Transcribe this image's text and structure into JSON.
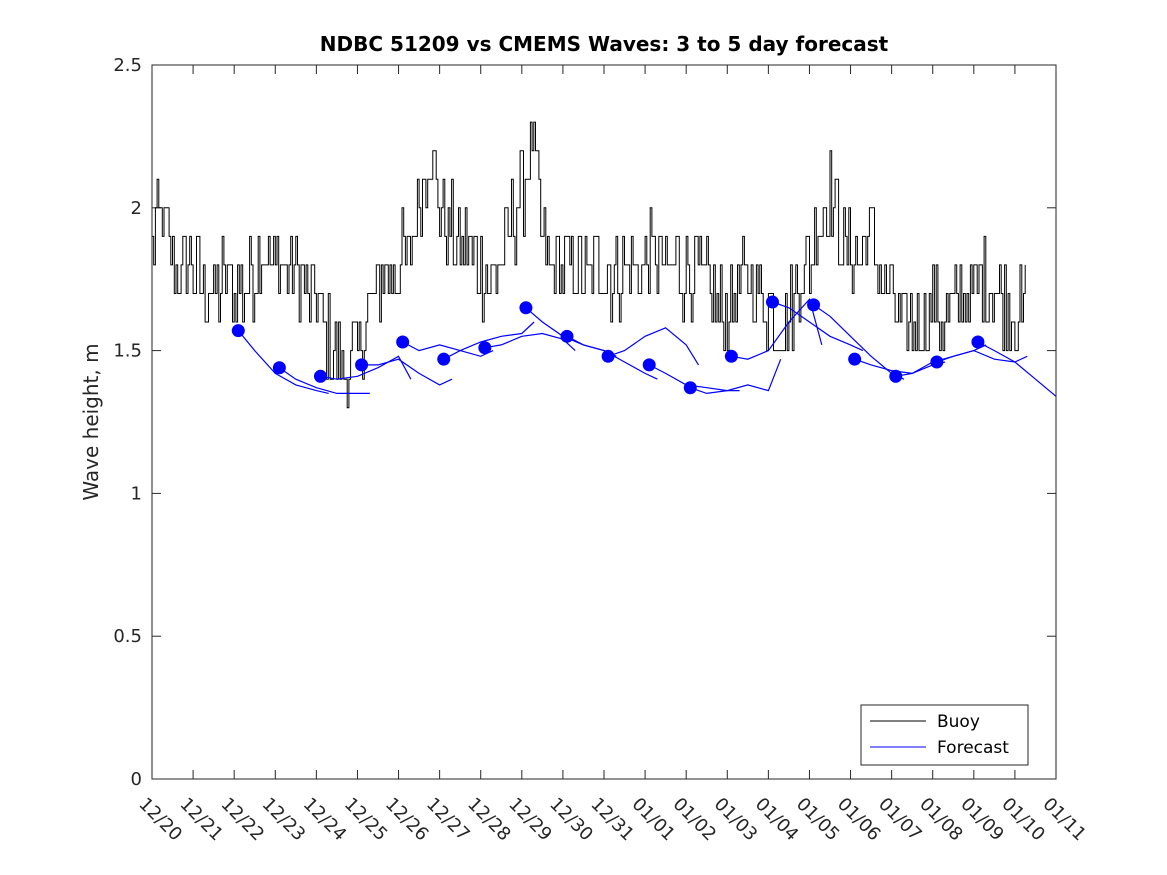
{
  "chart_data": {
    "type": "line",
    "title": "NDBC 51209 vs CMEMS Waves: 3 to 5 day forecast",
    "xlabel": "",
    "ylabel": "Wave height, m",
    "xlim": [
      0,
      22
    ],
    "ylim": [
      0,
      2.5
    ],
    "categories": [
      "12/20",
      "12/21",
      "12/22",
      "12/23",
      "12/24",
      "12/25",
      "12/26",
      "12/27",
      "12/28",
      "12/29",
      "12/30",
      "12/31",
      "01/01",
      "01/02",
      "01/03",
      "01/04",
      "01/05",
      "01/06",
      "01/07",
      "01/08",
      "01/09",
      "01/10",
      "01/11"
    ],
    "yticks": [
      0,
      0.5,
      1,
      1.5,
      2,
      2.5
    ],
    "ytick_labels": [
      "0",
      "0.5",
      "1",
      "1.5",
      "2",
      "2.5"
    ],
    "legend": {
      "position": "bottom-right",
      "entries": [
        "Buoy",
        "Forecast"
      ]
    },
    "colors": {
      "buoy": "#000000",
      "forecast": "#0000ff",
      "axis": "#262626"
    },
    "buoy": {
      "name": "Buoy",
      "x": [
        0,
        0.25,
        0.5,
        0.75,
        1,
        1.25,
        1.5,
        1.75,
        2,
        2.25,
        2.5,
        2.75,
        3,
        3.25,
        3.5,
        3.75,
        4,
        4.25,
        4.5,
        4.75,
        5,
        5.25,
        5.5,
        5.75,
        6,
        6.25,
        6.5,
        6.75,
        7,
        7.25,
        7.5,
        7.75,
        8,
        8.25,
        8.5,
        8.75,
        9,
        9.25,
        9.5,
        9.75,
        10,
        10.25,
        10.5,
        10.75,
        11,
        11.25,
        11.5,
        11.75,
        12,
        12.25,
        12.5,
        12.75,
        13,
        13.25,
        13.5,
        13.75,
        14,
        14.25,
        14.5,
        14.75,
        15,
        15.25,
        15.5,
        15.75,
        16,
        16.25,
        16.5,
        16.75,
        17,
        17.25,
        17.5,
        17.75,
        18,
        18.25,
        18.5,
        18.75,
        19,
        19.25,
        19.5,
        19.75,
        20,
        20.25,
        20.5,
        20.75,
        21,
        21.1,
        21.2,
        21.25
      ],
      "y": [
        1.9,
        1.95,
        1.8,
        1.75,
        1.8,
        1.72,
        1.7,
        1.75,
        1.72,
        1.72,
        1.8,
        1.85,
        1.8,
        1.8,
        1.8,
        1.7,
        1.65,
        1.55,
        1.45,
        1.45,
        1.5,
        1.62,
        1.72,
        1.78,
        1.8,
        1.85,
        2.05,
        2.2,
        2.0,
        1.92,
        1.88,
        1.85,
        1.78,
        1.75,
        1.82,
        1.95,
        2.05,
        2.25,
        1.85,
        1.8,
        1.8,
        1.82,
        1.75,
        1.8,
        1.8,
        1.75,
        1.8,
        1.78,
        1.8,
        1.85,
        1.75,
        1.8,
        1.75,
        1.8,
        1.72,
        1.65,
        1.65,
        1.7,
        1.75,
        1.7,
        1.65,
        1.6,
        1.62,
        1.75,
        1.82,
        1.95,
        2.1,
        1.9,
        1.82,
        1.85,
        1.95,
        1.75,
        1.7,
        1.6,
        1.6,
        1.62,
        1.65,
        1.6,
        1.65,
        1.7,
        1.7,
        1.75,
        1.7,
        1.65,
        1.65,
        1.62,
        1.6,
        1.8
      ]
    },
    "forecast_segments": [
      {
        "x": [
          2.1,
          2.5,
          3.0,
          3.5,
          4.0,
          4.3
        ],
        "y": [
          1.57,
          1.5,
          1.42,
          1.38,
          1.36,
          1.35
        ]
      },
      {
        "x": [
          3.1,
          3.5,
          4.0,
          4.5,
          5.0,
          5.3
        ],
        "y": [
          1.44,
          1.4,
          1.37,
          1.35,
          1.35,
          1.35
        ]
      },
      {
        "x": [
          4.1,
          4.5,
          5.0,
          5.5,
          6.0,
          6.3
        ],
        "y": [
          1.41,
          1.4,
          1.41,
          1.44,
          1.48,
          1.4
        ]
      },
      {
        "x": [
          5.1,
          5.5,
          6.0,
          6.5,
          7.0,
          7.3
        ],
        "y": [
          1.45,
          1.45,
          1.47,
          1.42,
          1.38,
          1.4
        ]
      },
      {
        "x": [
          6.1,
          6.5,
          7.0,
          7.5,
          8.0,
          8.3
        ],
        "y": [
          1.53,
          1.5,
          1.52,
          1.5,
          1.48,
          1.5
        ]
      },
      {
        "x": [
          7.1,
          7.5,
          8.0,
          8.5,
          9.0,
          9.3
        ],
        "y": [
          1.47,
          1.5,
          1.53,
          1.55,
          1.56,
          1.6
        ]
      },
      {
        "x": [
          8.1,
          8.5,
          9.0,
          9.5,
          10.0,
          10.3
        ],
        "y": [
          1.51,
          1.52,
          1.55,
          1.56,
          1.54,
          1.5
        ]
      },
      {
        "x": [
          9.1,
          9.5,
          10.0,
          10.5,
          11.0,
          11.3
        ],
        "y": [
          1.65,
          1.6,
          1.55,
          1.52,
          1.5,
          1.48
        ]
      },
      {
        "x": [
          10.1,
          10.5,
          11.0,
          11.5,
          12.0,
          12.3
        ],
        "y": [
          1.55,
          1.52,
          1.5,
          1.46,
          1.42,
          1.4
        ]
      },
      {
        "x": [
          11.1,
          11.5,
          12.0,
          12.5,
          13.0,
          13.3
        ],
        "y": [
          1.48,
          1.5,
          1.55,
          1.58,
          1.52,
          1.45
        ]
      },
      {
        "x": [
          12.1,
          12.5,
          13.0,
          13.5,
          14.0,
          14.3
        ],
        "y": [
          1.45,
          1.42,
          1.38,
          1.37,
          1.36,
          1.36
        ]
      },
      {
        "x": [
          13.1,
          13.5,
          14.0,
          14.5,
          15.0,
          15.3
        ],
        "y": [
          1.37,
          1.35,
          1.36,
          1.38,
          1.36,
          1.47
        ]
      },
      {
        "x": [
          14.1,
          14.5,
          15.0,
          15.5,
          16.0,
          16.3
        ],
        "y": [
          1.48,
          1.47,
          1.5,
          1.6,
          1.68,
          1.52
        ]
      },
      {
        "x": [
          15.1,
          15.5,
          16.0,
          16.5,
          17.0,
          17.3
        ],
        "y": [
          1.67,
          1.65,
          1.6,
          1.55,
          1.52,
          1.5
        ]
      },
      {
        "x": [
          16.1,
          16.5,
          17.0,
          17.5,
          18.0,
          18.3
        ],
        "y": [
          1.66,
          1.62,
          1.55,
          1.48,
          1.42,
          1.4
        ]
      },
      {
        "x": [
          17.1,
          17.5,
          18.0,
          18.5,
          19.0,
          19.3
        ],
        "y": [
          1.47,
          1.45,
          1.43,
          1.42,
          1.45,
          1.46
        ]
      },
      {
        "x": [
          18.1,
          18.5,
          19.0,
          19.5,
          20.0,
          20.3
        ],
        "y": [
          1.41,
          1.42,
          1.46,
          1.48,
          1.5,
          1.52
        ]
      },
      {
        "x": [
          19.1,
          19.5,
          20.0,
          20.5,
          21.0,
          21.3
        ],
        "y": [
          1.46,
          1.48,
          1.5,
          1.47,
          1.46,
          1.48
        ]
      },
      {
        "x": [
          20.1,
          20.5,
          21.0,
          21.5,
          22.0
        ],
        "y": [
          1.53,
          1.5,
          1.46,
          1.4,
          1.34
        ]
      }
    ],
    "forecast_markers": {
      "x": [
        2.1,
        3.1,
        4.1,
        5.1,
        6.1,
        7.1,
        8.1,
        9.1,
        10.1,
        11.1,
        12.1,
        13.1,
        14.1,
        15.1,
        16.1,
        17.1,
        18.1,
        19.1,
        20.1
      ],
      "y": [
        1.57,
        1.44,
        1.41,
        1.45,
        1.53,
        1.47,
        1.51,
        1.65,
        1.55,
        1.48,
        1.45,
        1.37,
        1.48,
        1.67,
        1.66,
        1.47,
        1.41,
        1.46,
        1.53
      ]
    }
  }
}
